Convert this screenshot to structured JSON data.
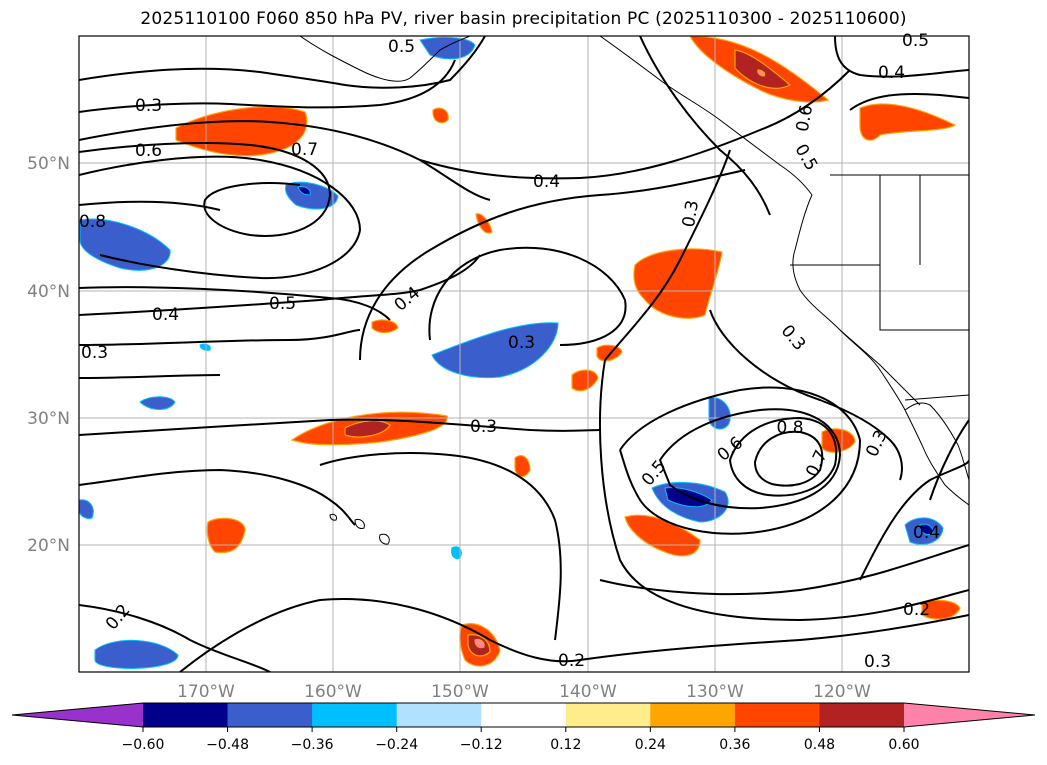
{
  "title": "2025110100 F060 850 hPa PV, river basin precipitation PC (2025110300 - 2025110600)",
  "lat_labels": [
    "50°N",
    "40°N",
    "30°N",
    "20°N"
  ],
  "lon_labels": [
    "170°W",
    "160°W",
    "150°W",
    "140°W",
    "130°W",
    "120°W"
  ],
  "contour_labels": [
    "0.5",
    "0.5",
    "0.4",
    "0.3",
    "0.6",
    "0.7",
    "0.4",
    "0.6",
    "0.5",
    "0.8",
    "0.4",
    "0.5",
    "0.3",
    "0.3",
    "0.3",
    "0.4",
    "0.3",
    "0.3",
    "0.6",
    "0.8",
    "0.7",
    "0.3",
    "0.5",
    "0.4",
    "0.2",
    "0.2",
    "0.2",
    "0.3"
  ],
  "colorbar": {
    "tick_labels": [
      "−0.60",
      "−0.48",
      "−0.36",
      "−0.24",
      "−0.12",
      "0.12",
      "0.24",
      "0.36",
      "0.48",
      "0.60"
    ],
    "colors": [
      "#9932cc",
      "#00008b",
      "#3a5fcd",
      "#00bfff",
      "#b0e2ff",
      "#ffffff",
      "#ffec8b",
      "#ffa500",
      "#ff4500",
      "#b22222",
      "#ff82ab"
    ]
  },
  "colors": {
    "land_outline": "#000000",
    "contour": "#000000",
    "grid": "#b3b3b3",
    "axis_label": "#808080"
  }
}
